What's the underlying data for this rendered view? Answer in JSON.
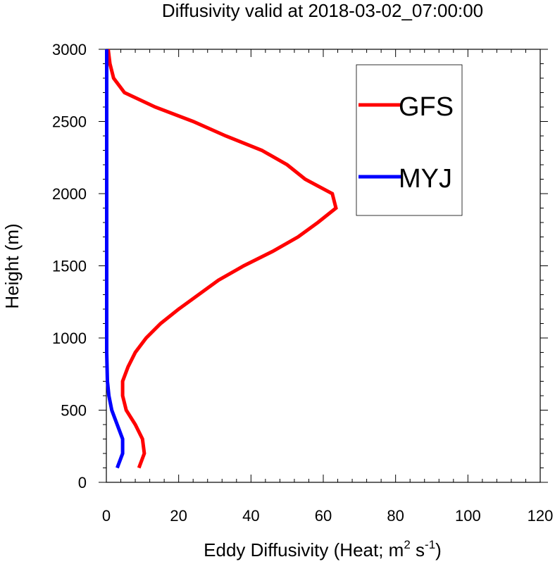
{
  "chart_data": {
    "type": "line",
    "title": "Diffusivity valid at 2018-03-02_07:00:00",
    "xlabel": {
      "main": "Eddy Diffusivity (Heat; m",
      "sup1": "2",
      "mid": " s",
      "sup2": "-1",
      "end": ")"
    },
    "ylabel": "Height (m)",
    "xlim": [
      0,
      120
    ],
    "ylim": [
      0,
      3000
    ],
    "xticks": [
      0,
      20,
      40,
      60,
      80,
      100,
      120
    ],
    "yticks": [
      0,
      500,
      1000,
      1500,
      2000,
      2500,
      3000
    ],
    "legend_position": "top-right",
    "series": [
      {
        "name": "GFS",
        "color": "#ff0000",
        "points": [
          [
            9,
            100
          ],
          [
            10.5,
            200
          ],
          [
            10,
            300
          ],
          [
            8,
            400
          ],
          [
            5.5,
            500
          ],
          [
            4.5,
            600
          ],
          [
            4.5,
            700
          ],
          [
            6,
            800
          ],
          [
            8,
            900
          ],
          [
            11,
            1000
          ],
          [
            15,
            1100
          ],
          [
            20,
            1200
          ],
          [
            25.5,
            1300
          ],
          [
            31,
            1400
          ],
          [
            38,
            1500
          ],
          [
            46,
            1600
          ],
          [
            53,
            1700
          ],
          [
            58.5,
            1800
          ],
          [
            63.5,
            1900
          ],
          [
            62.5,
            2000
          ],
          [
            55,
            2100
          ],
          [
            50,
            2200
          ],
          [
            43,
            2300
          ],
          [
            33,
            2400
          ],
          [
            24,
            2500
          ],
          [
            13.5,
            2600
          ],
          [
            5,
            2700
          ],
          [
            2,
            2800
          ],
          [
            1,
            2900
          ],
          [
            0.5,
            3000
          ]
        ]
      },
      {
        "name": "MYJ",
        "color": "#0000ff",
        "points": [
          [
            3,
            100
          ],
          [
            4.5,
            200
          ],
          [
            4.5,
            300
          ],
          [
            3,
            400
          ],
          [
            1.5,
            500
          ],
          [
            0.7,
            600
          ],
          [
            0.3,
            700
          ],
          [
            0.2,
            800
          ],
          [
            0.1,
            900
          ],
          [
            0.1,
            1000
          ],
          [
            0.1,
            1500
          ],
          [
            0.1,
            2000
          ],
          [
            0.1,
            2500
          ],
          [
            0.1,
            3000
          ]
        ]
      }
    ]
  }
}
